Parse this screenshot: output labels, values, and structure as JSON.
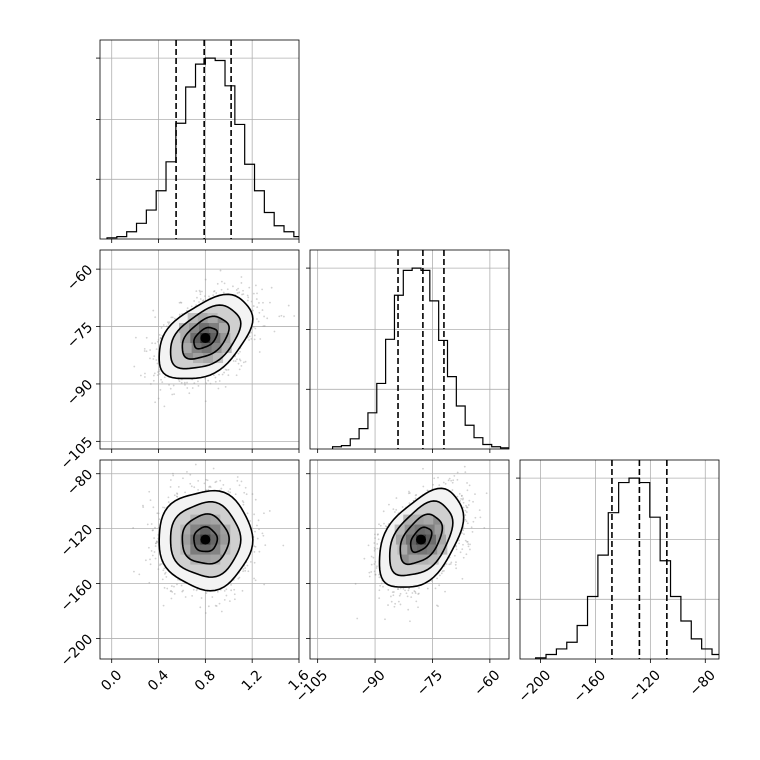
{
  "chart_data": {
    "type": "corner",
    "style": {
      "line_color": "#000000",
      "grid_color": "#b0b0b0",
      "scatter_color": "#9a9a9a",
      "density_dark": "#1e1e1e",
      "background": "#ffffff",
      "grid": true
    },
    "parameters": [
      {
        "range": [
          -0.1,
          1.6
        ],
        "ticks": [
          0.0,
          0.4,
          0.8,
          1.2,
          1.6
        ],
        "tick_labels": [
          "0.0",
          "0.4",
          "0.8",
          "1.2",
          "1.6"
        ],
        "mean": 0.8,
        "sd": 0.2,
        "quantiles": [
          0.55,
          0.79,
          1.02
        ],
        "hist_bins": 20,
        "hist_counts": [
          1,
          2,
          6,
          13,
          24,
          40,
          64,
          96,
          126,
          145,
          150,
          148,
          127,
          95,
          62,
          40,
          22,
          11,
          6,
          2
        ]
      },
      {
        "range": [
          -107,
          -55
        ],
        "ticks": [
          -105,
          -90,
          -75,
          -60
        ],
        "tick_labels": [
          "−105",
          "−90",
          "−75",
          "−60"
        ],
        "mean": -78,
        "sd": 5.5,
        "quantiles": [
          -84,
          -77.5,
          -72
        ],
        "hist_bins": 20,
        "hist_counts": [
          2,
          3,
          9,
          18,
          32,
          58,
          97,
          136,
          158,
          160,
          158,
          131,
          96,
          64,
          38,
          21,
          10,
          4,
          2,
          1
        ]
      },
      {
        "range": [
          -215,
          -70
        ],
        "ticks": [
          -200,
          -160,
          -120,
          -80
        ],
        "tick_labels": [
          "−200",
          "−160",
          "−120",
          "−80"
        ],
        "mean": -128,
        "sd": 18,
        "quantiles": [
          -148,
          -128,
          -108
        ],
        "hist_bins": 20,
        "hist_counts": [
          1,
          4,
          9,
          15,
          30,
          56,
          93,
          131,
          158,
          162,
          158,
          127,
          88,
          56,
          34,
          18,
          9,
          4,
          2,
          1
        ]
      }
    ],
    "correlations": [
      [
        1.0,
        0.45,
        0.0
      ],
      [
        0.45,
        1.0,
        0.45
      ],
      [
        0.0,
        0.45,
        1.0
      ]
    ],
    "contour_levels_sigma": [
      0.5,
      1.0,
      1.5,
      2.0
    ],
    "scatter_points_per_panel": 1500
  }
}
